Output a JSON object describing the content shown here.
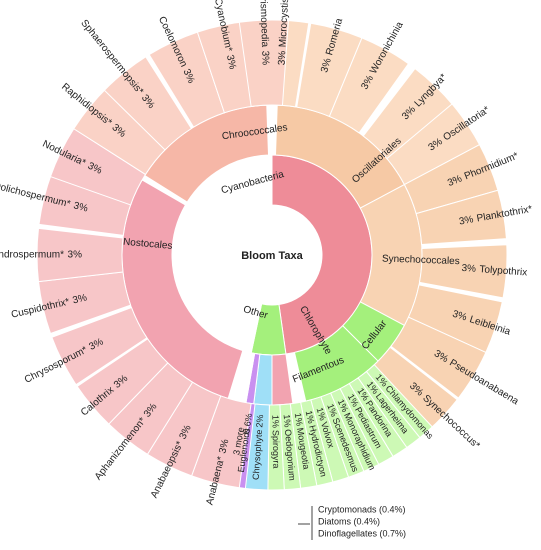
{
  "chart_data": {
    "type": "sunburst",
    "center": "Bloom Taxa",
    "colors": {
      "cyanobacteria": "#ee8c98",
      "cyano_leaf": "#f7c6c8",
      "chroococcales": "#f6b7a7",
      "chroo_leaf": "#fad2c6",
      "oscillatoriales": "#f6c9a5",
      "osc_leaf": "#fbdcc3",
      "synechococcales": "#f8d3b3",
      "nostocales": "#f2a3b0",
      "chlorophyte": "#a4f07c",
      "green_leaf": "#cdf9b5",
      "chrysophyte": "#9fdff7",
      "euglenoids": "#c990f0",
      "other": "#ffffff",
      "stroke": "#ffffff"
    },
    "rings": [
      {
        "level": 1,
        "segments": [
          {
            "key": "cyanobacteria",
            "label": "Cyanobacteria",
            "start": 0,
            "end": 172,
            "color": "cyanobacteria"
          },
          {
            "key": "chlorophyte",
            "label": "Chlorophyte",
            "start": 172,
            "end": 192,
            "color": "chlorophyte"
          },
          {
            "key": "other",
            "label": "Other",
            "start": 192,
            "end": 197,
            "color": "other"
          }
        ]
      },
      {
        "level": 2,
        "segments": [
          {
            "label": "Chroococcales",
            "start": 302,
            "end": 358,
            "color": "chroococcales"
          },
          {
            "label": "Oscillatoriales",
            "start": 2,
            "end": 62,
            "color": "oscillatoriales"
          },
          {
            "label": "Synechococcales",
            "start": 62,
            "end": 118,
            "color": "synechococcales"
          },
          {
            "label": "Nostocales",
            "start": 172,
            "end": 300,
            "color": "nostocales"
          },
          {
            "label": "Cellular",
            "start": 118,
            "end": 135,
            "color": "chlorophyte"
          },
          {
            "label": "Filamentous",
            "start": 135,
            "end": 167,
            "color": "chlorophyte"
          },
          {
            "label": "",
            "start": 180,
            "end": 187,
            "color": "chrysophyte"
          },
          {
            "label": "",
            "start": 187,
            "end": 190,
            "color": "euglenoids"
          }
        ]
      }
    ],
    "leaves": [
      {
        "name": "Microcystis*",
        "pct": "3%"
      },
      {
        "name": "Romeria",
        "pct": "3%"
      },
      {
        "name": "Woronichinia",
        "pct": "3%"
      },
      {
        "name": "Lyngbya*",
        "pct": "3%"
      },
      {
        "name": "Oscillatoria*",
        "pct": "3%"
      },
      {
        "name": "Phormidium*",
        "pct": "3%"
      },
      {
        "name": "Planktothrix*",
        "pct": "3%"
      },
      {
        "name": "Tolypothrix",
        "pct": "3%"
      },
      {
        "name": "Leibleinia",
        "pct": "3%"
      },
      {
        "name": "Pseudoanabaena",
        "pct": "3%"
      },
      {
        "name": "Synechococcus*",
        "pct": "3%"
      },
      {
        "name": "Chlamydomonas",
        "pct": "1%"
      },
      {
        "name": "Lagerheima",
        "pct": "1%"
      },
      {
        "name": "Pandorina",
        "pct": "1%"
      },
      {
        "name": "Pediastrum",
        "pct": "1%"
      },
      {
        "name": "Monoraphidium",
        "pct": "1%"
      },
      {
        "name": "Scenedesmus",
        "pct": "1%"
      },
      {
        "name": "Volvox",
        "pct": "1%"
      },
      {
        "name": "Hydrodictyon",
        "pct": "1%"
      },
      {
        "name": "Mougeotia",
        "pct": "1%"
      },
      {
        "name": "Oedogonium",
        "pct": "1%"
      },
      {
        "name": "Spirogyra",
        "pct": "1%"
      },
      {
        "name": "Chrysophyte",
        "pct": "2%"
      },
      {
        "name": "3 more",
        "pct": ""
      },
      {
        "name": "Euglenoids",
        "pct": "0.6%"
      },
      {
        "name": "Anabaena*",
        "pct": "3%"
      },
      {
        "name": "Anabaeopsis*",
        "pct": "3%"
      },
      {
        "name": "Aphanizomenon*",
        "pct": "3%"
      },
      {
        "name": "Calothrix",
        "pct": "3%"
      },
      {
        "name": "Chrysosporum*",
        "pct": "3%"
      },
      {
        "name": "Cuspidothrix*",
        "pct": "3%"
      },
      {
        "name": "Cylindrospermum*",
        "pct": "3%"
      },
      {
        "name": "Dolichospermum*",
        "pct": "3%"
      },
      {
        "name": "Nodularia*",
        "pct": "3%"
      },
      {
        "name": "Raphidiopsis*",
        "pct": "3%"
      },
      {
        "name": "Sphaerospermopsis*",
        "pct": "3%"
      },
      {
        "name": "Coelomoron",
        "pct": "3%"
      },
      {
        "name": "Cyanobium*",
        "pct": "3%"
      },
      {
        "name": "Merismopedia",
        "pct": "3%"
      }
    ],
    "more_note": [
      "Cryptomonads (0.4%)",
      "Diatoms (0.4%)",
      "Dinoflagellates (0.7%)"
    ]
  }
}
